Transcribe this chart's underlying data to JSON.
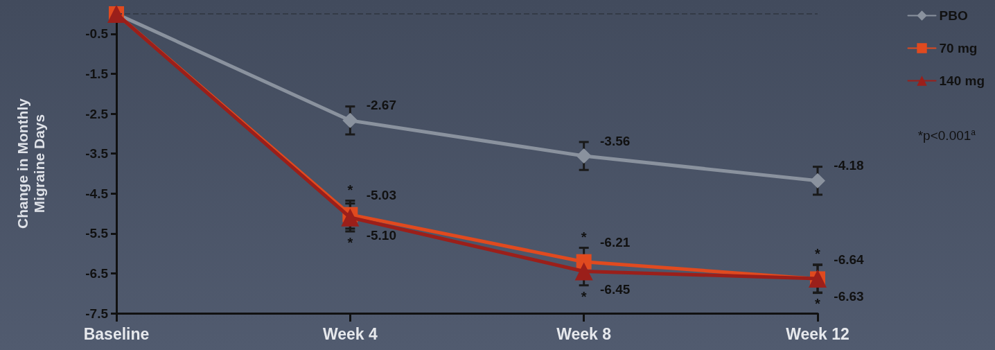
{
  "chart_data": {
    "type": "line",
    "ylabel": "Change in Monthly Migraine Days",
    "categories": [
      "Baseline",
      "Week 4",
      "Week 8",
      "Week 12"
    ],
    "series": [
      {
        "name": "PBO",
        "color": "#8a929e",
        "marker": "diamond",
        "values": [
          0,
          -2.67,
          -3.56,
          -4.18
        ],
        "errors": [
          null,
          0.35,
          0.35,
          0.35
        ],
        "value_labels": [
          null,
          "-2.67",
          "-3.56",
          "-4.18"
        ]
      },
      {
        "name": "70 mg",
        "color": "#e04a1f",
        "marker": "square",
        "values": [
          0,
          -5.03,
          -6.21,
          -6.64
        ],
        "errors": [
          null,
          0.35,
          0.35,
          0.35
        ],
        "value_labels": [
          null,
          "-5.03",
          "-6.21",
          "-6.64"
        ]
      },
      {
        "name": "140 mg",
        "color": "#9b1f1a",
        "marker": "triangle",
        "values": [
          0,
          -5.1,
          -6.45,
          -6.63
        ],
        "errors": [
          null,
          0.35,
          0.35,
          0.35
        ],
        "value_labels": [
          null,
          "-5.10",
          "-6.45",
          "-6.63"
        ]
      }
    ],
    "ylim": [
      -7.5,
      0
    ],
    "yticks": [
      -0.5,
      -1.5,
      -2.5,
      -3.5,
      -4.5,
      -5.5,
      -6.5,
      -7.5
    ],
    "ref_lines": [
      {
        "axis": "y",
        "value": 0,
        "label": null,
        "color": "#333a46",
        "line_style": "dashed"
      }
    ],
    "legend": "top right",
    "grid": false,
    "line_style": "solid",
    "annotations": [
      {
        "text": "*",
        "x": "Week 4",
        "y": -4.68
      },
      {
        "text": "*",
        "x": "Week 4",
        "y": -5.45
      },
      {
        "text": "*",
        "x": "Week 8",
        "y": -5.86
      },
      {
        "text": "*",
        "x": "Week 8",
        "y": -6.8
      },
      {
        "text": "*",
        "x": "Week 12",
        "y": -6.29
      },
      {
        "text": "*",
        "x": "Week 12",
        "y": -6.98
      },
      "*p<0.001$^{a}$"
    ]
  }
}
